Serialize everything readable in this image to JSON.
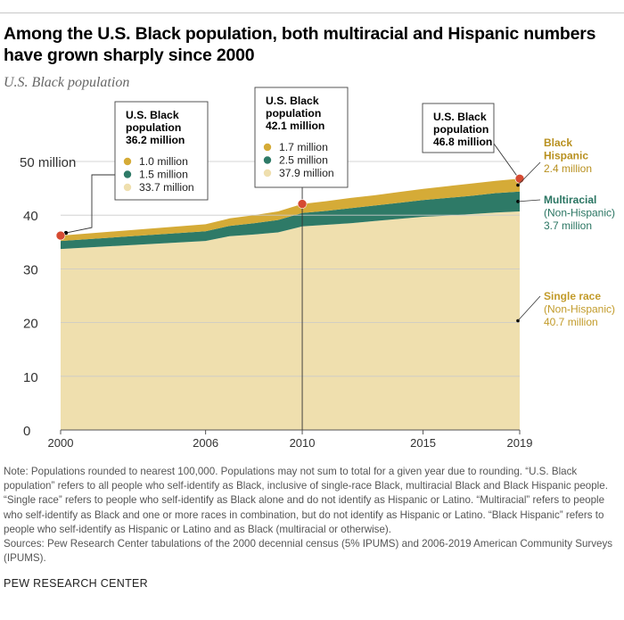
{
  "title": "Among the U.S. Black population, both multiracial and Hispanic numbers have grown sharply since 2000",
  "subtitle": "U.S. Black population",
  "chart_data": {
    "type": "area",
    "stacked": true,
    "x": [
      2000,
      2006,
      2007,
      2008,
      2009,
      2010,
      2011,
      2012,
      2013,
      2014,
      2015,
      2016,
      2017,
      2018,
      2019
    ],
    "x_tick_labels": [
      "2000",
      "2006",
      "2010",
      "2015",
      "2019"
    ],
    "x_ticks": [
      2000,
      2006,
      2010,
      2015,
      2019
    ],
    "xlim": [
      2000,
      2019
    ],
    "ylim": [
      0,
      50
    ],
    "y_ticks": [
      0,
      10,
      20,
      30,
      40,
      50
    ],
    "y_tick_labels": [
      "0",
      "10",
      "20",
      "30",
      "40",
      "50 million"
    ],
    "grid": true,
    "series": [
      {
        "key": "single",
        "color": "#efdfae",
        "values": [
          33.7,
          35.2,
          36.1,
          36.4,
          36.8,
          37.9,
          38.2,
          38.5,
          38.9,
          39.3,
          39.7,
          39.9,
          40.2,
          40.5,
          40.7
        ]
      },
      {
        "key": "multi",
        "color": "#2e7a67",
        "values": [
          1.5,
          1.8,
          1.9,
          2.1,
          2.3,
          2.5,
          2.6,
          2.8,
          2.9,
          3.0,
          3.1,
          3.3,
          3.4,
          3.6,
          3.7
        ]
      },
      {
        "key": "hispanic",
        "color": "#d5ab37",
        "values": [
          1.0,
          1.3,
          1.4,
          1.5,
          1.6,
          1.7,
          1.8,
          1.9,
          1.9,
          2.0,
          2.1,
          2.2,
          2.3,
          2.3,
          2.4
        ]
      }
    ],
    "marker_color": "#d64a31",
    "highlights": [
      {
        "year": 2000,
        "total": 36.2,
        "heading": [
          "U.S. Black",
          "population",
          "36.2 million"
        ],
        "items": [
          {
            "key": "hispanic",
            "label": "1.0 million"
          },
          {
            "key": "multi",
            "label": "1.5 million"
          },
          {
            "key": "single",
            "label": "33.7 million"
          }
        ]
      },
      {
        "year": 2010,
        "total": 42.1,
        "heading": [
          "U.S. Black",
          "population",
          "42.1 million"
        ],
        "items": [
          {
            "key": "hispanic",
            "label": "1.7 million"
          },
          {
            "key": "multi",
            "label": "2.5 million"
          },
          {
            "key": "single",
            "label": "37.9 million"
          }
        ]
      },
      {
        "year": 2019,
        "total": 46.8,
        "heading": [
          "U.S. Black",
          "population",
          "46.8 million"
        ],
        "items": []
      }
    ],
    "end_labels": [
      {
        "key": "hispanic",
        "color": "#b8901f",
        "lines": [
          "Black",
          "Hispanic",
          "2.4 million"
        ]
      },
      {
        "key": "multi",
        "color": "#2a7562",
        "lines": [
          "Multiracial",
          "(Non-Hispanic)",
          "3.7 million"
        ]
      },
      {
        "key": "single",
        "color": "#c29b2a",
        "lines": [
          "Single race",
          "(Non-Hispanic)",
          "40.7 million"
        ]
      }
    ]
  },
  "notes": {
    "note": "Note: Populations rounded to nearest 100,000. Populations may not sum to total for a given year due to rounding. “U.S. Black population” refers to all people who self-identify as Black, inclusive of single-race Black, multiracial Black and Black Hispanic people. “Single race” refers to people who self-identify as Black alone and do not identify as Hispanic or Latino. “Multiracial” refers to people who self-identify as Black and one or more races in combination, but do not identify as Hispanic or Latino. “Black Hispanic” refers to people who self-identify as Hispanic or Latino and as Black (multiracial or otherwise).",
    "sources": "Sources: Pew Research Center tabulations of the 2000 decennial census (5% IPUMS) and 2006-2019 American Community Surveys (IPUMS)."
  },
  "brand": "PEW RESEARCH CENTER"
}
